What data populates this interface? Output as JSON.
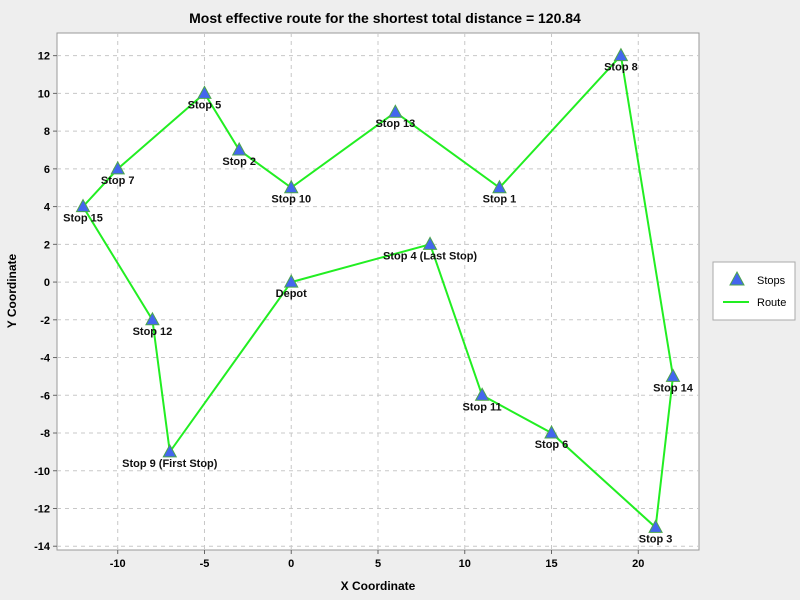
{
  "chart_data": {
    "type": "scatter",
    "title": "Most effective route for the shortest total distance = 120.84",
    "xlabel": "X Coordinate",
    "ylabel": "Y Coordinate",
    "xlim": [
      -13.5,
      23.5
    ],
    "ylim": [
      -14.2,
      13.2
    ],
    "x_ticks": [
      -10,
      -5,
      0,
      5,
      10,
      15,
      20
    ],
    "y_ticks": [
      12,
      10,
      8,
      6,
      4,
      2,
      0,
      -2,
      -4,
      -6,
      -8,
      -10,
      -12,
      -14
    ],
    "grid": true,
    "legend_placement": "right",
    "colors": {
      "stops": "#4466ee",
      "stops_edge": "#4ca64c",
      "route": "#22ee22",
      "plot_bg": "#ffffff",
      "grid": "#c8c8c8"
    },
    "series": [
      {
        "name": "Stops",
        "marker": "triangle",
        "points": [
          {
            "label": "Depot",
            "x": 0,
            "y": 0
          },
          {
            "label": "Stop 1",
            "x": 12,
            "y": 5
          },
          {
            "label": "Stop 2",
            "x": -3,
            "y": 7
          },
          {
            "label": "Stop 3",
            "x": 21,
            "y": -13
          },
          {
            "label": "Stop 4 (Last Stop)",
            "x": 8,
            "y": 2
          },
          {
            "label": "Stop 5",
            "x": -5,
            "y": 10
          },
          {
            "label": "Stop 6",
            "x": 15,
            "y": -8
          },
          {
            "label": "Stop 7",
            "x": -10,
            "y": 6
          },
          {
            "label": "Stop 8",
            "x": 19,
            "y": 12
          },
          {
            "label": "Stop 9 (First Stop)",
            "x": -7,
            "y": -9
          },
          {
            "label": "Stop 10",
            "x": 0,
            "y": 5
          },
          {
            "label": "Stop 11",
            "x": 11,
            "y": -6
          },
          {
            "label": "Stop 12",
            "x": -8,
            "y": -2
          },
          {
            "label": "Stop 13",
            "x": 6,
            "y": 9
          },
          {
            "label": "Stop 14",
            "x": 22,
            "y": -5
          },
          {
            "label": "Stop 15",
            "x": -12,
            "y": 4
          }
        ]
      },
      {
        "name": "Route",
        "marker": "line",
        "order": [
          "Depot",
          "Stop 9 (First Stop)",
          "Stop 12",
          "Stop 15",
          "Stop 7",
          "Stop 5",
          "Stop 2",
          "Stop 10",
          "Stop 13",
          "Stop 1",
          "Stop 8",
          "Stop 14",
          "Stop 3",
          "Stop 6",
          "Stop 11",
          "Stop 4 (Last Stop)",
          "Depot"
        ]
      }
    ]
  }
}
